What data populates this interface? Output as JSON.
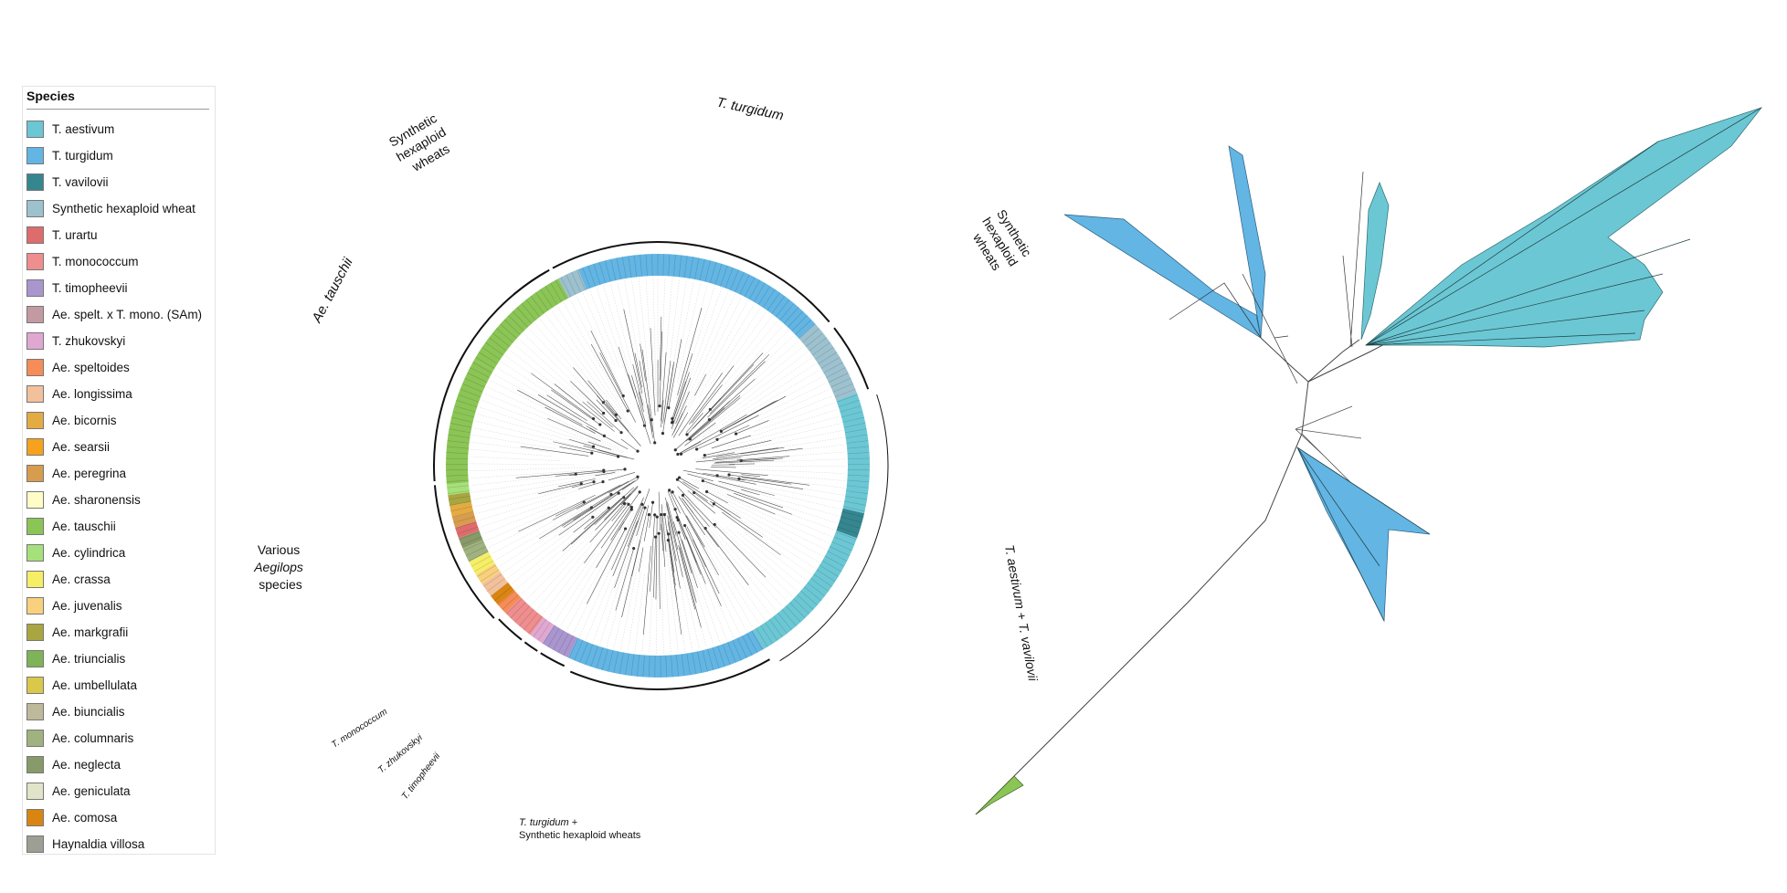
{
  "legend": {
    "title": "Species",
    "items": [
      {
        "label": "T. aestivum",
        "color": "#6CC7D4"
      },
      {
        "label": "T. turgidum",
        "color": "#63B5E3"
      },
      {
        "label": "T. vavilovii",
        "color": "#36868F"
      },
      {
        "label": "Synthetic hexaploid wheat",
        "color": "#9DC1CE"
      },
      {
        "label": "T. urartu",
        "color": "#DF6C6C"
      },
      {
        "label": "T. monococcum",
        "color": "#EE8E8E"
      },
      {
        "label": "T. timopheevii",
        "color": "#A996CF"
      },
      {
        "label": "Ae. spelt. x T. mono. (SAm)",
        "color": "#C49AA2"
      },
      {
        "label": "T. zhukovskyi",
        "color": "#E0A8D0"
      },
      {
        "label": "Ae. speltoides",
        "color": "#F68C57"
      },
      {
        "label": "Ae. longissima",
        "color": "#F2C19C"
      },
      {
        "label": "Ae. bicornis",
        "color": "#E3AB42"
      },
      {
        "label": "Ae. searsii",
        "color": "#F6A21E"
      },
      {
        "label": "Ae. peregrina",
        "color": "#D79C4E"
      },
      {
        "label": "Ae. sharonensis",
        "color": "#FEFDC7"
      },
      {
        "label": "Ae. tauschii",
        "color": "#8BC556"
      },
      {
        "label": "Ae. cylindrica",
        "color": "#A6E07A"
      },
      {
        "label": "Ae. crassa",
        "color": "#F5EE66"
      },
      {
        "label": "Ae. juvenalis",
        "color": "#F9D07D"
      },
      {
        "label": "Ae. markgrafii",
        "color": "#A9A641"
      },
      {
        "label": "Ae. triuncialis",
        "color": "#7FB357"
      },
      {
        "label": "Ae. umbellulata",
        "color": "#D9C84A"
      },
      {
        "label": "Ae. biuncialis",
        "color": "#BDB99A"
      },
      {
        "label": "Ae. columnaris",
        "color": "#A0B27F"
      },
      {
        "label": "Ae. neglecta",
        "color": "#889A6A"
      },
      {
        "label": "Ae. geniculata",
        "color": "#E1E4C8"
      },
      {
        "label": "Ae. comosa",
        "color": "#D98512"
      },
      {
        "label": "Haynaldia villosa",
        "color": "#9D9F94"
      }
    ]
  },
  "circular_tree": {
    "clade_labels": {
      "t_turgidum": "T. turgidum",
      "synthetic_top_left": [
        "Synthetic",
        "hexaploid",
        "wheats"
      ],
      "synthetic_right": [
        "Synthetic",
        "hexaploid",
        "wheats"
      ],
      "ae_tauschii": "Ae. tauschii",
      "various_aegilops": [
        "Various",
        "Aegilops",
        "species"
      ],
      "t_aestivum_vavilovii": "T. aestivum + T. vavilovii",
      "t_monococcum": "T. monococcum",
      "t_zhukovskyi": "T. zhukovskyi",
      "t_timopheevii": "T. timopheevii",
      "t_turgidum_synthetic": [
        "T. turgidum +",
        "Synthetic hexaploid wheats"
      ]
    }
  }
}
